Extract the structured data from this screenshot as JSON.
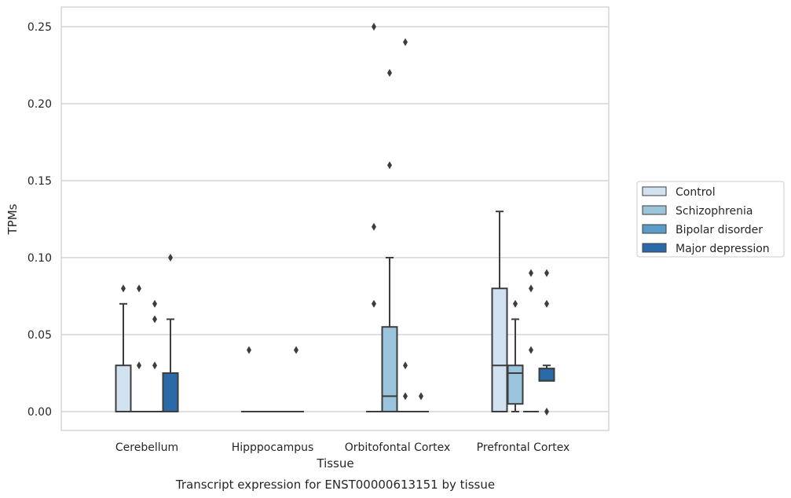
{
  "chart_data": {
    "type": "box",
    "title": "Transcript expression for ENST00000613151 by tissue",
    "xlabel": "Tissue",
    "ylabel": "TPMs",
    "ylim": [
      -0.012,
      0.262
    ],
    "yticks": [
      "0.00",
      "0.05",
      "0.10",
      "0.15",
      "0.20",
      "0.25"
    ],
    "categories": [
      "Cerebellum",
      "Hipppocampus",
      "Orbitofontal Cortex",
      "Prefrontal Cortex"
    ],
    "grid": "horizontal",
    "legend_position": "right",
    "series": [
      {
        "name": "Control",
        "color": "#d2e1f0",
        "boxes": [
          {
            "q1": 0.0,
            "median": 0.0,
            "q3": 0.03,
            "whisker_low": 0.0,
            "whisker_high": 0.07,
            "outliers": [
              0.08
            ]
          },
          {
            "q1": 0.0,
            "median": 0.0,
            "q3": 0.0,
            "whisker_low": 0.0,
            "whisker_high": 0.0,
            "outliers": [
              0.04
            ]
          },
          {
            "q1": 0.0,
            "median": 0.0,
            "q3": 0.0,
            "whisker_low": 0.0,
            "whisker_high": 0.0,
            "outliers": [
              0.07,
              0.12,
              0.25
            ]
          },
          {
            "q1": 0.0,
            "median": 0.03,
            "q3": 0.08,
            "whisker_low": 0.0,
            "whisker_high": 0.13,
            "outliers": []
          }
        ]
      },
      {
        "name": "Schizophrenia",
        "color": "#9ac3dc",
        "boxes": [
          {
            "q1": 0.0,
            "median": 0.0,
            "q3": 0.0,
            "whisker_low": 0.0,
            "whisker_high": 0.0,
            "outliers": [
              0.03,
              0.08
            ]
          },
          {
            "q1": 0.0,
            "median": 0.0,
            "q3": 0.0,
            "whisker_low": 0.0,
            "whisker_high": 0.0,
            "outliers": []
          },
          {
            "q1": 0.0,
            "median": 0.01,
            "q3": 0.055,
            "whisker_low": 0.0,
            "whisker_high": 0.1,
            "outliers": [
              0.16,
              0.22
            ]
          },
          {
            "q1": 0.005,
            "median": 0.025,
            "q3": 0.03,
            "whisker_low": 0.0,
            "whisker_high": 0.06,
            "outliers": [
              0.07
            ]
          }
        ]
      },
      {
        "name": "Bipolar disorder",
        "color": "#5b9bc8",
        "boxes": [
          {
            "q1": 0.0,
            "median": 0.0,
            "q3": 0.0,
            "whisker_low": 0.0,
            "whisker_high": 0.0,
            "outliers": [
              0.03,
              0.06,
              0.07
            ]
          },
          {
            "q1": 0.0,
            "median": 0.0,
            "q3": 0.0,
            "whisker_low": 0.0,
            "whisker_high": 0.0,
            "outliers": []
          },
          {
            "q1": 0.0,
            "median": 0.0,
            "q3": 0.0,
            "whisker_low": 0.0,
            "whisker_high": 0.0,
            "outliers": [
              0.01,
              0.03,
              0.24
            ]
          },
          {
            "q1": 0.0,
            "median": 0.0,
            "q3": 0.0,
            "whisker_low": 0.0,
            "whisker_high": 0.0,
            "outliers": [
              0.04,
              0.08,
              0.09
            ]
          }
        ]
      },
      {
        "name": "Major depression",
        "color": "#2a6aa8",
        "boxes": [
          {
            "q1": 0.0,
            "median": 0.0,
            "q3": 0.025,
            "whisker_low": 0.0,
            "whisker_high": 0.06,
            "outliers": [
              0.1
            ]
          },
          {
            "q1": 0.0,
            "median": 0.0,
            "q3": 0.0,
            "whisker_low": 0.0,
            "whisker_high": 0.0,
            "outliers": [
              0.04
            ]
          },
          {
            "q1": 0.0,
            "median": 0.0,
            "q3": 0.0,
            "whisker_low": 0.0,
            "whisker_high": 0.0,
            "outliers": [
              0.01
            ]
          },
          {
            "q1": 0.02,
            "median": 0.02,
            "q3": 0.028,
            "whisker_low": 0.02,
            "whisker_high": 0.03,
            "outliers": [
              0.0,
              0.07,
              0.09
            ]
          }
        ]
      }
    ]
  }
}
